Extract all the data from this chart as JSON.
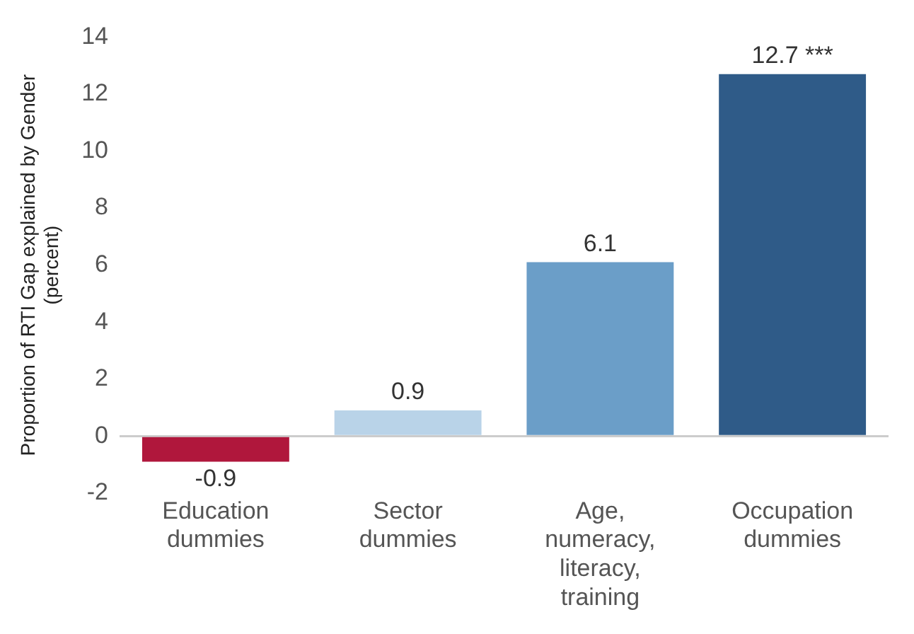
{
  "chart_data": {
    "type": "bar",
    "ylabel": "Proportion of RTI Gap explained by Gender (percent)",
    "categories": [
      "Education dummies",
      "Sector dummies",
      "Age, numeracy, literacy, training",
      "Occupation dummies"
    ],
    "values": [
      -0.9,
      0.9,
      6.1,
      12.7
    ],
    "colors": [
      "#b0173c",
      "#b9d3e8",
      "#6b9ec8",
      "#2f5b88"
    ],
    "value_labels": [
      "-0.9",
      "0.9",
      "6.1",
      "12.7 ***"
    ],
    "ylim": [
      -2,
      14
    ],
    "yticks": [
      -2,
      0,
      2,
      4,
      6,
      8,
      10,
      12,
      14
    ],
    "grid": false,
    "legend": false
  }
}
